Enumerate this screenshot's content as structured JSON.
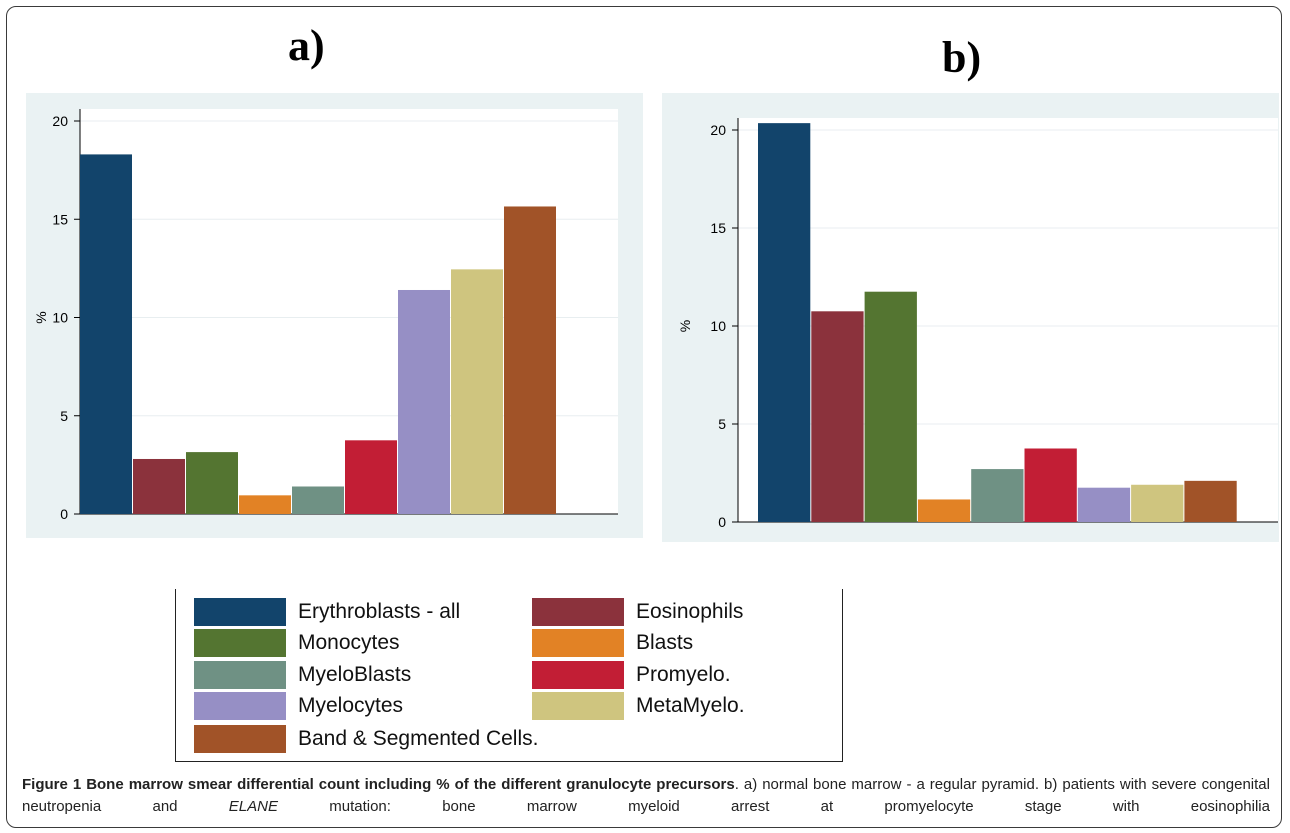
{
  "panels": {
    "a_label": "a)",
    "b_label": "b)"
  },
  "colors": {
    "Erythroblasts - all": "#12446b",
    "Eosinophils": "#8b323c",
    "Monocytes": "#547531",
    "Blasts": "#e28225",
    "MyeloBlasts": "#6f9184",
    "Promyelo.": "#c21e35",
    "Myelocytes": "#968fc5",
    "MetaMyelo.": "#cfc57f",
    "Band & Segmented Cells.": "#a15328",
    "plot_bg": "#ffffff",
    "outer_bg": "#eaf2f3",
    "grid": "#e8eef0"
  },
  "chart_data": [
    {
      "type": "bar",
      "panel": "a)",
      "ylabel": "%",
      "ylim": [
        0,
        20
      ],
      "yticks": [
        "0",
        "5",
        "10",
        "15",
        "20"
      ],
      "categories": [
        "Erythroblasts - all",
        "Eosinophils",
        "Monocytes",
        "Blasts",
        "MyeloBlasts",
        "Promyelo.",
        "Myelocytes",
        "MetaMyelo.",
        "Band & Segmented Cells."
      ],
      "values": [
        18.3,
        2.8,
        3.15,
        0.95,
        1.4,
        3.75,
        11.4,
        12.45,
        15.65
      ],
      "grid": true
    },
    {
      "type": "bar",
      "panel": "b)",
      "ylabel": "%",
      "ylim": [
        0,
        20
      ],
      "yticks": [
        "0",
        "5",
        "10",
        "15",
        "20"
      ],
      "categories": [
        "Erythroblasts - all",
        "Eosinophils",
        "Monocytes",
        "Blasts",
        "MyeloBlasts",
        "Promyelo.",
        "Myelocytes",
        "MetaMyelo.",
        "Band & Segmented Cells."
      ],
      "values": [
        20.35,
        10.75,
        11.75,
        1.15,
        2.7,
        3.75,
        1.75,
        1.9,
        2.1
      ],
      "grid": true
    }
  ],
  "legend": {
    "placement": "bottom",
    "items": [
      "Erythroblasts - all",
      "Eosinophils",
      "Monocytes",
      "Blasts",
      "MyeloBlasts",
      "Promyelo.",
      "Myelocytes",
      "MetaMyelo.",
      "Band & Segmented Cells."
    ]
  },
  "caption": {
    "title": "Figure 1 Bone marrow smear differential count including % of the different granulocyte precursors",
    "text_1": ". a) normal bone marrow - a regular pyramid. b) patients with severe congenital neutropenia and ",
    "gene": "ELANE",
    "text_2": " mutation: bone marrow myeloid arrest at promyelocyte stage with eosinophilia"
  }
}
